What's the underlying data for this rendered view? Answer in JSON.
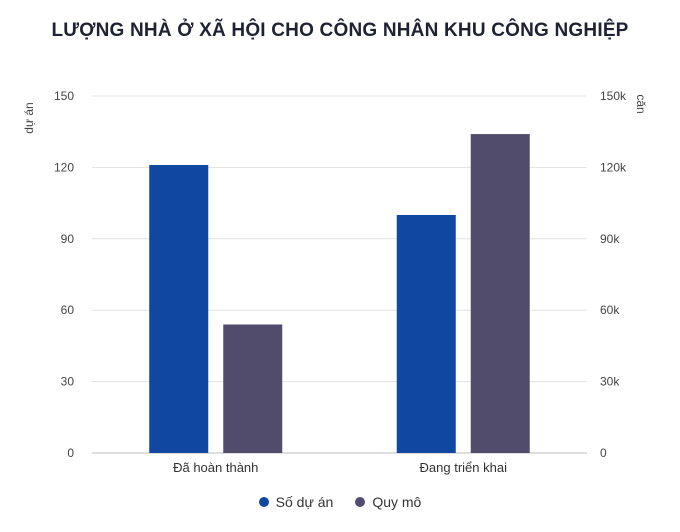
{
  "chart_data": {
    "type": "bar",
    "title": "LƯỢNG NHÀ Ở XÃ HỘI CHO CÔNG NHÂN KHU CÔNG NGHIỆP",
    "categories": [
      "Đã hoàn thành",
      "Đang triển khai"
    ],
    "series": [
      {
        "name": "Số dự án",
        "axis": "left",
        "values": [
          121,
          100
        ],
        "color": "#0f47a1"
      },
      {
        "name": "Quy mô",
        "axis": "right",
        "values": [
          54000,
          134000
        ],
        "color": "#514c6b"
      }
    ],
    "y_left": {
      "label": "dự án",
      "ylim": [
        0,
        150
      ],
      "ticks": [
        "0",
        "30",
        "60",
        "90",
        "120",
        "150"
      ]
    },
    "y_right": {
      "label": "căn",
      "ylim": [
        0,
        150000
      ],
      "ticks": [
        "0",
        "30k",
        "60k",
        "90k",
        "120k",
        "150k"
      ]
    },
    "grid": true,
    "legend_position": "bottom-center"
  }
}
